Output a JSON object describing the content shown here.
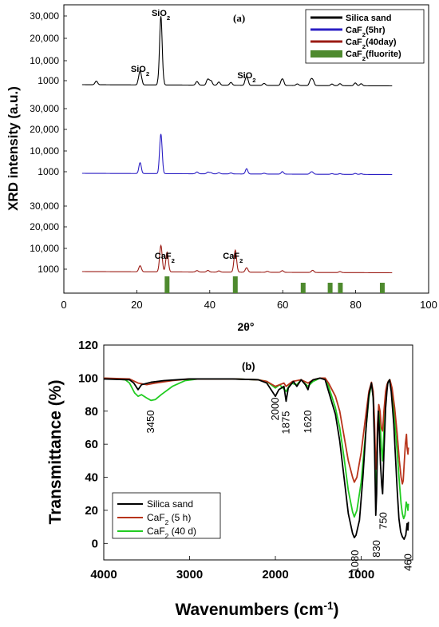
{
  "chart_data": [
    {
      "type": "line",
      "panel_label": "(a)",
      "xlabel": "2θ°",
      "ylabel": "XRD intensity (a.u.)",
      "xlim": [
        0,
        100
      ],
      "xticks": [
        "0",
        "20",
        "40",
        "60",
        "80",
        "100"
      ],
      "yticks_top": [
        "1000",
        "10,000",
        "20,000",
        "30,000"
      ],
      "yticks_middle": [
        "1000",
        "10,000",
        "20,000",
        "30,000"
      ],
      "yticks_bottom": [
        "1000",
        "10,000",
        "20,000",
        "30,000"
      ],
      "legend_position": "top-right",
      "legend": [
        {
          "label": "Silica sand",
          "color": "#000000",
          "style": "line"
        },
        {
          "label": "CaF2(5hr)",
          "color": "#2b1fc4",
          "style": "line"
        },
        {
          "label": "CaF2(40day)",
          "color": "#9b1b14",
          "style": "line"
        },
        {
          "label": "CaF2(fluorite)",
          "color": "#4e8a2e",
          "style": "bar"
        }
      ],
      "peak_labels": [
        {
          "text": "SiO2",
          "x": 26.6,
          "panel": "top"
        },
        {
          "text": "SiO2",
          "x": 20.9,
          "panel": "top"
        },
        {
          "text": "SiO2",
          "x": 50.1,
          "panel": "top"
        },
        {
          "text": "CaF2",
          "x": 28.3,
          "panel": "bottom"
        },
        {
          "text": "CaF2",
          "x": 47.0,
          "panel": "bottom"
        }
      ],
      "series": [
        {
          "name": "Silica sand",
          "color": "#000000",
          "peaks": [
            [
              8.9,
              900
            ],
            [
              20.9,
              5500
            ],
            [
              26.6,
              30000
            ],
            [
              36.5,
              900
            ],
            [
              39.5,
              1900
            ],
            [
              40.3,
              1200
            ],
            [
              42.5,
              800
            ],
            [
              45.8,
              700
            ],
            [
              50.1,
              3200
            ],
            [
              54.9,
              500
            ],
            [
              59.9,
              2200
            ],
            [
              64.0,
              400
            ],
            [
              67.7,
              1500
            ],
            [
              68.2,
              1600
            ],
            [
              73.5,
              400
            ],
            [
              75.7,
              500
            ],
            [
              79.9,
              700
            ],
            [
              81.5,
              500
            ]
          ]
        },
        {
          "name": "CaF2(5hr)",
          "color": "#2b1fc4",
          "peaks": [
            [
              20.9,
              5000
            ],
            [
              26.6,
              18000
            ],
            [
              36.5,
              1100
            ],
            [
              39.5,
              1000
            ],
            [
              40.3,
              700
            ],
            [
              42.5,
              700
            ],
            [
              45.8,
              600
            ],
            [
              50.1,
              2600
            ],
            [
              54.9,
              500
            ],
            [
              59.9,
              1400
            ],
            [
              67.7,
              900
            ],
            [
              68.2,
              900
            ],
            [
              73.5,
              400
            ],
            [
              75.7,
              400
            ],
            [
              79.9,
              600
            ],
            [
              81.5,
              400
            ]
          ]
        },
        {
          "name": "CaF2(40day)",
          "color": "#9b1b14",
          "peaks": [
            [
              20.9,
              2600
            ],
            [
              26.6,
              11500
            ],
            [
              28.3,
              8500
            ],
            [
              36.5,
              600
            ],
            [
              39.5,
              700
            ],
            [
              42.5,
              500
            ],
            [
              47.0,
              9500
            ],
            [
              50.1,
              1900
            ],
            [
              55.8,
              400
            ],
            [
              59.9,
              700
            ],
            [
              68.2,
              900
            ],
            [
              75.7,
              400
            ]
          ]
        }
      ],
      "fluorite_bars": [
        {
          "x": 28.3,
          "h": 1.0
        },
        {
          "x": 47.0,
          "h": 1.0
        },
        {
          "x": 65.6,
          "h": 0.62
        },
        {
          "x": 73.0,
          "h": 0.62
        },
        {
          "x": 75.8,
          "h": 0.62
        },
        {
          "x": 87.3,
          "h": 0.62
        }
      ]
    },
    {
      "type": "line",
      "panel_label": "(b)",
      "xlabel": "Wavenumbers (cm-1)",
      "ylabel": "Transmittance (%)",
      "xlim": [
        4000,
        400
      ],
      "ylim": [
        -10,
        120
      ],
      "xticks": [
        "4000",
        "3000",
        "2000",
        "1000"
      ],
      "yticks": [
        "0",
        "20",
        "40",
        "60",
        "80",
        "100",
        "120"
      ],
      "legend_position": "bottom-left",
      "annotations": [
        {
          "text": "3450",
          "x": 3450,
          "y": 75
        },
        {
          "text": "2000",
          "x": 2000,
          "y": 89
        },
        {
          "text": "1875",
          "x": 1875,
          "y": 83
        },
        {
          "text": "1620",
          "x": 1620,
          "y": 84
        },
        {
          "text": "1080",
          "x": 1080,
          "y": -8
        },
        {
          "text": "830",
          "x": 830,
          "y": -3
        },
        {
          "text": "750",
          "x": 750,
          "y": 18
        },
        {
          "text": "460",
          "x": 460,
          "y": -8
        }
      ],
      "series": [
        {
          "name": "Silica sand",
          "color": "#000000",
          "points": [
            [
              4000,
              99.5
            ],
            [
              3700,
              99
            ],
            [
              3650,
              97
            ],
            [
              3600,
              93
            ],
            [
              3560,
              96
            ],
            [
              3450,
              97.5
            ],
            [
              3300,
              98.5
            ],
            [
              3000,
              99.5
            ],
            [
              2500,
              99.5
            ],
            [
              2200,
              99
            ],
            [
              2100,
              97
            ],
            [
              2000,
              89
            ],
            [
              1960,
              93
            ],
            [
              1900,
              95
            ],
            [
              1875,
              86
            ],
            [
              1850,
              94
            ],
            [
              1790,
              98
            ],
            [
              1750,
              95
            ],
            [
              1700,
              99
            ],
            [
              1650,
              96
            ],
            [
              1620,
              93
            ],
            [
              1600,
              97
            ],
            [
              1560,
              99
            ],
            [
              1480,
              100
            ],
            [
              1420,
              99
            ],
            [
              1380,
              92
            ],
            [
              1300,
              78
            ],
            [
              1250,
              62
            ],
            [
              1200,
              40
            ],
            [
              1150,
              18
            ],
            [
              1100,
              6
            ],
            [
              1080,
              3.5
            ],
            [
              1060,
              5
            ],
            [
              1020,
              14
            ],
            [
              980,
              40
            ],
            [
              940,
              72
            ],
            [
              910,
              90
            ],
            [
              880,
              97
            ],
            [
              860,
              88
            ],
            [
              845,
              60
            ],
            [
              830,
              17
            ],
            [
              820,
              30
            ],
            [
              810,
              62
            ],
            [
              800,
              80
            ],
            [
              790,
              70
            ],
            [
              775,
              48
            ],
            [
              760,
              35
            ],
            [
              750,
              30
            ],
            [
              735,
              55
            ],
            [
              715,
              82
            ],
            [
              700,
              92
            ],
            [
              690,
              97
            ],
            [
              670,
              99
            ],
            [
              650,
              92
            ],
            [
              620,
              72
            ],
            [
              600,
              52
            ],
            [
              580,
              32
            ],
            [
              560,
              15
            ],
            [
              540,
              7
            ],
            [
              520,
              4
            ],
            [
              500,
              2.5
            ],
            [
              480,
              5
            ],
            [
              465,
              12
            ],
            [
              455,
              8
            ],
            [
              450,
              13
            ]
          ]
        },
        {
          "name": "CaF2 (5 h)",
          "color": "#b8341b",
          "points": [
            [
              4000,
              100
            ],
            [
              3700,
              99.5
            ],
            [
              3600,
              97
            ],
            [
              3500,
              96
            ],
            [
              3400,
              97
            ],
            [
              3200,
              98.5
            ],
            [
              3000,
              99.5
            ],
            [
              2500,
              99.5
            ],
            [
              2200,
              99
            ],
            [
              2100,
              98
            ],
            [
              2000,
              95
            ],
            [
              1900,
              97
            ],
            [
              1875,
              95
            ],
            [
              1800,
              98
            ],
            [
              1700,
              99
            ],
            [
              1620,
              97
            ],
            [
              1560,
              99
            ],
            [
              1480,
              100
            ],
            [
              1420,
              100
            ],
            [
              1380,
              97
            ],
            [
              1300,
              89
            ],
            [
              1250,
              80
            ],
            [
              1200,
              65
            ],
            [
              1150,
              50
            ],
            [
              1100,
              40
            ],
            [
              1080,
              37
            ],
            [
              1050,
              40
            ],
            [
              1000,
              55
            ],
            [
              950,
              76
            ],
            [
              910,
              92
            ],
            [
              880,
              97.5
            ],
            [
              860,
              92
            ],
            [
              845,
              74
            ],
            [
              830,
              45
            ],
            [
              820,
              52
            ],
            [
              810,
              72
            ],
            [
              795,
              84
            ],
            [
              780,
              80
            ],
            [
              765,
              70
            ],
            [
              750,
              68
            ],
            [
              735,
              80
            ],
            [
              715,
              92
            ],
            [
              700,
              96
            ],
            [
              685,
              98
            ],
            [
              665,
              99
            ],
            [
              640,
              94
            ],
            [
              610,
              82
            ],
            [
              580,
              66
            ],
            [
              555,
              50
            ],
            [
              535,
              40
            ],
            [
              520,
              36
            ],
            [
              510,
              38
            ],
            [
              500,
              47
            ],
            [
              485,
              60
            ],
            [
              472,
              66
            ],
            [
              465,
              58
            ],
            [
              455,
              54
            ],
            [
              450,
              58
            ]
          ]
        },
        {
          "name": "CaF2 (40 d)",
          "color": "#22cc22",
          "points": [
            [
              4000,
              100
            ],
            [
              3750,
              99
            ],
            [
              3700,
              97
            ],
            [
              3640,
              91
            ],
            [
              3600,
              89
            ],
            [
              3560,
              90
            ],
            [
              3500,
              88
            ],
            [
              3450,
              86.5
            ],
            [
              3400,
              87
            ],
            [
              3330,
              90
            ],
            [
              3200,
              95
            ],
            [
              3050,
              98.5
            ],
            [
              2900,
              99.5
            ],
            [
              2500,
              99.5
            ],
            [
              2200,
              99
            ],
            [
              2100,
              98
            ],
            [
              2000,
              94
            ],
            [
              1950,
              96
            ],
            [
              1875,
              92
            ],
            [
              1820,
              97
            ],
            [
              1750,
              96
            ],
            [
              1700,
              99
            ],
            [
              1620,
              95
            ],
            [
              1560,
              98
            ],
            [
              1480,
              100
            ],
            [
              1420,
              100
            ],
            [
              1380,
              95
            ],
            [
              1300,
              82
            ],
            [
              1250,
              70
            ],
            [
              1200,
              52
            ],
            [
              1150,
              32
            ],
            [
              1100,
              19
            ],
            [
              1080,
              16
            ],
            [
              1050,
              20
            ],
            [
              1000,
              37
            ],
            [
              950,
              66
            ],
            [
              910,
              88
            ],
            [
              880,
              97
            ],
            [
              860,
              89
            ],
            [
              845,
              66
            ],
            [
              830,
              30
            ],
            [
              820,
              38
            ],
            [
              810,
              66
            ],
            [
              795,
              80
            ],
            [
              780,
              74
            ],
            [
              765,
              58
            ],
            [
              750,
              50
            ],
            [
              735,
              68
            ],
            [
              715,
              87
            ],
            [
              700,
              94
            ],
            [
              685,
              98
            ],
            [
              665,
              99
            ],
            [
              640,
              91
            ],
            [
              610,
              75
            ],
            [
              580,
              55
            ],
            [
              555,
              37
            ],
            [
              535,
              24
            ],
            [
              520,
              18
            ],
            [
              505,
              15
            ],
            [
              490,
              17
            ],
            [
              475,
              25
            ],
            [
              465,
              23
            ],
            [
              455,
              20
            ],
            [
              450,
              24
            ]
          ]
        }
      ],
      "legend": [
        {
          "label": "Silica sand",
          "color": "#000000"
        },
        {
          "label": "CaF2 (5 h)",
          "color": "#b8341b"
        },
        {
          "label": "CaF2 (40 d)",
          "color": "#22cc22"
        }
      ]
    }
  ]
}
